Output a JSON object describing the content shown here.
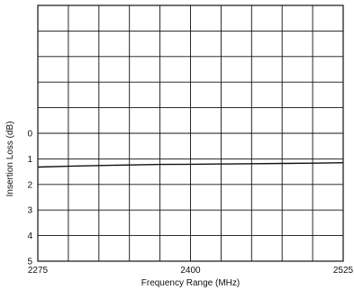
{
  "chart_data": {
    "type": "line",
    "title": "",
    "xlabel": "Frequency Range (MHz)",
    "ylabel": "Insertion Loss (dB)",
    "xlim": [
      2275,
      2525
    ],
    "x_ticks": [
      {
        "value": 2275,
        "label": "2275"
      },
      {
        "value": 2400,
        "label": "2400"
      },
      {
        "value": 2525,
        "label": "2525"
      }
    ],
    "y_rows": 10,
    "y_loss_range": [
      0,
      5
    ],
    "y_ticks": [
      {
        "value": 0,
        "label": "0"
      },
      {
        "value": 1,
        "label": "1"
      },
      {
        "value": 2,
        "label": "2"
      },
      {
        "value": 3,
        "label": "3"
      },
      {
        "value": 4,
        "label": "4"
      },
      {
        "value": 5,
        "label": "5"
      }
    ],
    "grid": true,
    "x_divisions": 10,
    "series": [
      {
        "color": "#111111",
        "x": [
          2275,
          2300,
          2325,
          2350,
          2375,
          2400,
          2425,
          2450,
          2475,
          2500,
          2525
        ],
        "values": [
          1.32,
          1.29,
          1.26,
          1.24,
          1.22,
          1.21,
          1.2,
          1.19,
          1.18,
          1.17,
          1.15
        ]
      }
    ]
  }
}
